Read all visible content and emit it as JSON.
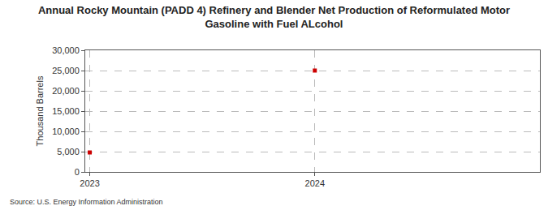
{
  "chart_data": {
    "type": "scatter",
    "title": "Annual Rocky Mountain (PADD 4) Refinery and Blender Net Production of Reformulated Motor Gasoline with Fuel ALcohol",
    "y_label": "Thousand Barrels",
    "annotations": [
      "Source: U.S. Energy Information Administration"
    ],
    "x": [
      2023,
      2024
    ],
    "values": [
      4800,
      25000
    ],
    "color": "#cc0000",
    "marker": "square",
    "xlim": [
      2022.98,
      2025
    ],
    "xticks": [
      2023,
      2024
    ],
    "ylim": [
      0,
      30000
    ],
    "yticks": [
      0,
      {
        "value": 5000,
        "label": "5,000"
      },
      {
        "value": 10000,
        "label": "10,000"
      },
      {
        "value": 15000,
        "label": "15,000"
      },
      {
        "value": 20000,
        "label": "20,000"
      },
      {
        "value": 25000,
        "label": "25,000"
      },
      {
        "value": 30000,
        "label": "30,000"
      }
    ],
    "grid": true
  }
}
